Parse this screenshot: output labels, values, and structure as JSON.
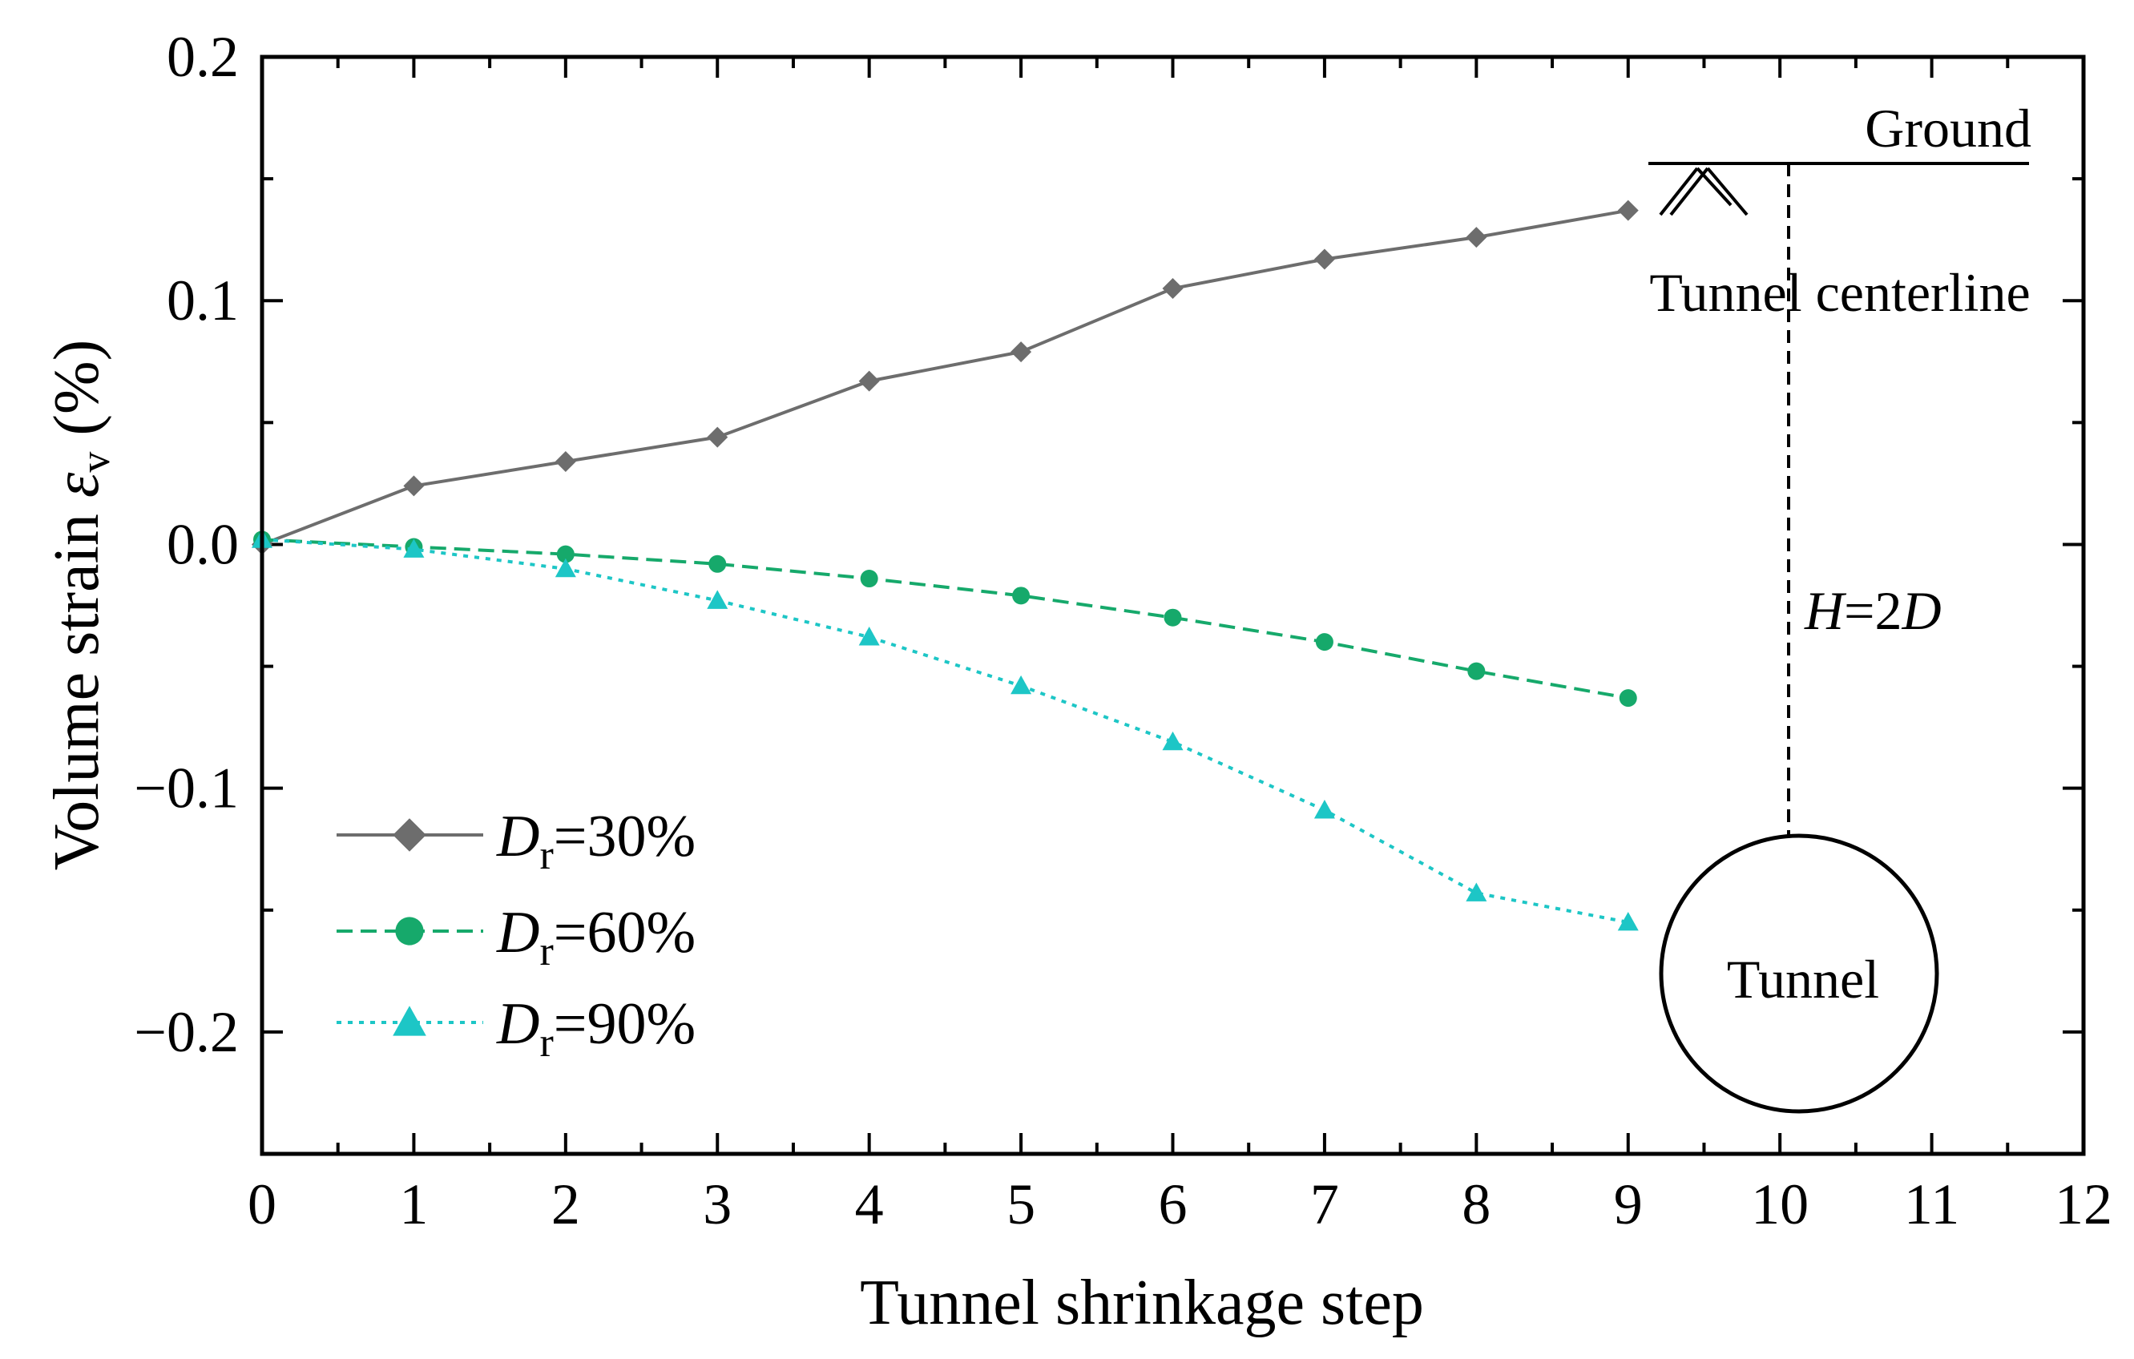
{
  "chart_data": {
    "type": "line",
    "xlabel": "Tunnel shrinkage step",
    "ylabel": {
      "prefix": "Volume strain ",
      "symbol": "ε",
      "subscript": "v",
      "suffix": " (%)"
    },
    "xlim": [
      0,
      12
    ],
    "ylim": [
      -0.25,
      0.2
    ],
    "x_ticks": [
      "0",
      "1",
      "2",
      "3",
      "4",
      "5",
      "6",
      "7",
      "8",
      "9",
      "10",
      "11",
      "12"
    ],
    "y_ticks": [
      {
        "value": 0.2,
        "label": "0.2"
      },
      {
        "value": 0.1,
        "label": "0.1"
      },
      {
        "value": 0.0,
        "label": "0.0"
      },
      {
        "value": -0.1,
        "label": "−0.1"
      },
      {
        "value": -0.2,
        "label": "−0.2"
      }
    ],
    "x": [
      0,
      1,
      2,
      3,
      4,
      5,
      6,
      7,
      8,
      9
    ],
    "series": [
      {
        "name": "Dr=30%",
        "label_main": "D",
        "label_sub": "r",
        "label_rest": "=30%",
        "color": "#6d6d6d",
        "marker": "diamond",
        "dash": "solid",
        "values": [
          0.0,
          0.024,
          0.034,
          0.044,
          0.067,
          0.079,
          0.105,
          0.117,
          0.126,
          0.137
        ]
      },
      {
        "name": "Dr=60%",
        "label_main": "D",
        "label_sub": "r",
        "label_rest": "=60%",
        "color": "#16a96b",
        "marker": "circle",
        "dash": "dashed",
        "values": [
          0.002,
          -0.001,
          -0.004,
          -0.008,
          -0.014,
          -0.021,
          -0.03,
          -0.04,
          -0.052,
          -0.063
        ]
      },
      {
        "name": "Dr=90%",
        "label_main": "D",
        "label_sub": "r",
        "label_rest": "=90%",
        "color": "#1dc6c6",
        "marker": "triangle",
        "dash": "dotted",
        "values": [
          0.002,
          -0.002,
          -0.01,
          -0.023,
          -0.038,
          -0.058,
          -0.081,
          -0.109,
          -0.143,
          -0.155
        ]
      }
    ],
    "legend_position": "bottom-left",
    "annotations": {
      "ground": "Ground",
      "centerline": "Tunnel centerline",
      "depth_h": "H",
      "depth_eq": "=2",
      "depth_d": "D",
      "tunnel": "Tunnel"
    }
  }
}
